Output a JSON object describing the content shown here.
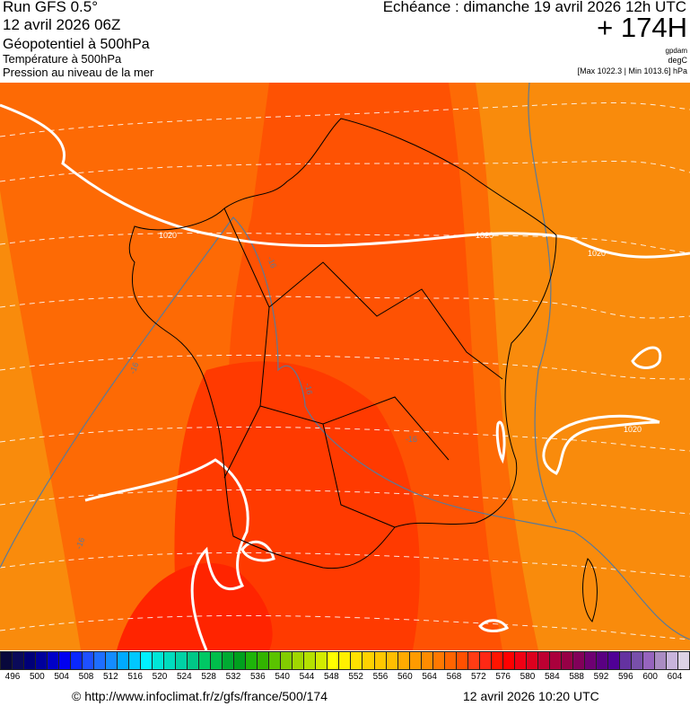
{
  "header": {
    "run": "Run GFS 0.5°",
    "run_date": "12 avril 2026 06Z",
    "field1": "Géopotentiel à 500hPa",
    "field2": "Température à 500hPa",
    "field3": "Pression au niveau de la mer",
    "echeance": "Echéance : dimanche 19 avril 2026 12h UTC",
    "lead": "+ 174H",
    "unit1": "gpdam",
    "unit2": "degC",
    "minmax": "[Max 1022.3 | Min 1013.6] hPa"
  },
  "map": {
    "isobar_labels": [
      "1020",
      "1020",
      "1020",
      "1020"
    ],
    "isotherm_labels": [
      "-16",
      "-16",
      "-16",
      "-16",
      "-16"
    ],
    "colors": {
      "outer": "#f98b0c",
      "mid": "#fd6a05",
      "inner": "#fe5203",
      "core": "#ff3a00",
      "hot": "#ff2400",
      "isobar": "#ffffff",
      "isotherm": "#5a7a99",
      "borders": "#000000"
    }
  },
  "colorbar": {
    "ticks": [
      "496",
      "500",
      "504",
      "508",
      "512",
      "516",
      "520",
      "524",
      "528",
      "532",
      "536",
      "540",
      "544",
      "548",
      "552",
      "556",
      "560",
      "564",
      "568",
      "572",
      "576",
      "580",
      "584",
      "588",
      "592",
      "596",
      "600",
      "604"
    ],
    "palette": [
      "#08083c",
      "#0a0a5a",
      "#000078",
      "#00009c",
      "#0000c8",
      "#0000f0",
      "#0a28ff",
      "#1e50ff",
      "#1e6eff",
      "#148cff",
      "#00aaff",
      "#00c8ff",
      "#00f0ff",
      "#00e6d7",
      "#00dcbe",
      "#00d2a5",
      "#00c887",
      "#00c864",
      "#00be4b",
      "#00aa32",
      "#00a01e",
      "#1eb40a",
      "#32b400",
      "#5ac300",
      "#82cd00",
      "#a0d700",
      "#b4e100",
      "#d2eb00",
      "#ffff00",
      "#fff000",
      "#ffe100",
      "#ffd200",
      "#ffc800",
      "#ffbe00",
      "#ffaa00",
      "#ff9b00",
      "#ff8c00",
      "#ff7800",
      "#ff6400",
      "#ff5000",
      "#ff3c14",
      "#ff2814",
      "#ff1400",
      "#ff0000",
      "#f00014",
      "#dc001e",
      "#be0032",
      "#aa003c",
      "#960046",
      "#82005a",
      "#6e0073",
      "#5a0082",
      "#500096",
      "#6432a0",
      "#7850aa",
      "#9664be",
      "#aa8cc3",
      "#c8b4dc",
      "#dcd2e6"
    ]
  },
  "footer": {
    "url": "© http://www.infoclimat.fr/z/gfs/france/500/174",
    "timestamp": "12 avril 2026 10:20 UTC"
  }
}
